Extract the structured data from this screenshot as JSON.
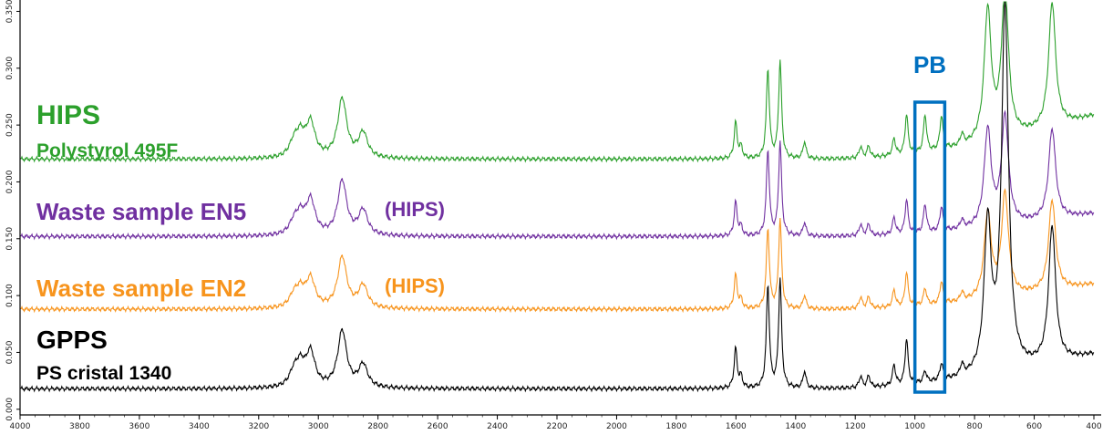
{
  "chart_data": {
    "type": "line",
    "title": "",
    "xlabel": "",
    "ylabel": "",
    "xlim": [
      4000,
      400
    ],
    "ylim": [
      -0.005,
      0.36
    ],
    "x_ticks": [
      "4000",
      "3800",
      "3600",
      "3400",
      "3200",
      "3000",
      "2800",
      "2600",
      "2400",
      "2200",
      "2000",
      "1800",
      "1600",
      "1400",
      "1200",
      "1000",
      "800",
      "600",
      "400"
    ],
    "y_ticks": [
      "0.000",
      "0.050",
      "0.100",
      "0.150",
      "0.200",
      "0.250",
      "0.300",
      "0.350"
    ],
    "series": [
      {
        "name": "HIPS",
        "sublabel": "Polystyrol 495F",
        "color": "#2ca02c",
        "baseline": 0.22,
        "tail_y": 0.258,
        "label_note": "",
        "peaks": [
          {
            "x": 3082,
            "h": 0.012
          },
          {
            "x": 3060,
            "h": 0.018
          },
          {
            "x": 3026,
            "h": 0.03
          },
          {
            "x": 2920,
            "h": 0.052
          },
          {
            "x": 2850,
            "h": 0.022
          },
          {
            "x": 1601,
            "h": 0.032
          },
          {
            "x": 1583,
            "h": 0.01
          },
          {
            "x": 1493,
            "h": 0.078
          },
          {
            "x": 1452,
            "h": 0.085
          },
          {
            "x": 1370,
            "h": 0.015
          },
          {
            "x": 1182,
            "h": 0.01
          },
          {
            "x": 1155,
            "h": 0.01
          },
          {
            "x": 1070,
            "h": 0.015
          },
          {
            "x": 1028,
            "h": 0.035
          },
          {
            "x": 966,
            "h": 0.033
          },
          {
            "x": 911,
            "h": 0.03
          },
          {
            "x": 842,
            "h": 0.01
          },
          {
            "x": 756,
            "h": 0.115
          },
          {
            "x": 698,
            "h": 0.13
          },
          {
            "x": 540,
            "h": 0.11
          }
        ]
      },
      {
        "name": "Waste sample EN5",
        "sublabel": "",
        "color": "#7030a0",
        "baseline": 0.152,
        "tail_y": 0.172,
        "label_note": "(HIPS)",
        "peaks": [
          {
            "x": 3082,
            "h": 0.01
          },
          {
            "x": 3060,
            "h": 0.016
          },
          {
            "x": 3026,
            "h": 0.03
          },
          {
            "x": 2920,
            "h": 0.048
          },
          {
            "x": 2850,
            "h": 0.022
          },
          {
            "x": 1601,
            "h": 0.03
          },
          {
            "x": 1583,
            "h": 0.008
          },
          {
            "x": 1493,
            "h": 0.075
          },
          {
            "x": 1452,
            "h": 0.082
          },
          {
            "x": 1370,
            "h": 0.012
          },
          {
            "x": 1182,
            "h": 0.01
          },
          {
            "x": 1155,
            "h": 0.01
          },
          {
            "x": 1070,
            "h": 0.015
          },
          {
            "x": 1028,
            "h": 0.03
          },
          {
            "x": 966,
            "h": 0.025
          },
          {
            "x": 911,
            "h": 0.022
          },
          {
            "x": 842,
            "h": 0.008
          },
          {
            "x": 756,
            "h": 0.085
          },
          {
            "x": 698,
            "h": 0.095
          },
          {
            "x": 540,
            "h": 0.08
          }
        ]
      },
      {
        "name": "Waste sample EN2",
        "sublabel": "",
        "color": "#f7941d",
        "baseline": 0.088,
        "tail_y": 0.11,
        "label_note": "(HIPS)",
        "peaks": [
          {
            "x": 3082,
            "h": 0.01
          },
          {
            "x": 3060,
            "h": 0.014
          },
          {
            "x": 3026,
            "h": 0.025
          },
          {
            "x": 2920,
            "h": 0.045
          },
          {
            "x": 2850,
            "h": 0.02
          },
          {
            "x": 1601,
            "h": 0.03
          },
          {
            "x": 1583,
            "h": 0.008
          },
          {
            "x": 1493,
            "h": 0.07
          },
          {
            "x": 1452,
            "h": 0.078
          },
          {
            "x": 1370,
            "h": 0.012
          },
          {
            "x": 1182,
            "h": 0.01
          },
          {
            "x": 1155,
            "h": 0.01
          },
          {
            "x": 1070,
            "h": 0.015
          },
          {
            "x": 1028,
            "h": 0.03
          },
          {
            "x": 966,
            "h": 0.015
          },
          {
            "x": 911,
            "h": 0.02
          },
          {
            "x": 842,
            "h": 0.008
          },
          {
            "x": 756,
            "h": 0.075
          },
          {
            "x": 698,
            "h": 0.09
          },
          {
            "x": 540,
            "h": 0.08
          }
        ]
      },
      {
        "name": "GPPS",
        "sublabel": "PS cristal 1340",
        "color": "#000000",
        "baseline": 0.018,
        "tail_y": 0.048,
        "label_note": "",
        "peaks": [
          {
            "x": 3082,
            "h": 0.012
          },
          {
            "x": 3060,
            "h": 0.018
          },
          {
            "x": 3026,
            "h": 0.03
          },
          {
            "x": 2920,
            "h": 0.05
          },
          {
            "x": 2850,
            "h": 0.02
          },
          {
            "x": 1601,
            "h": 0.035
          },
          {
            "x": 1583,
            "h": 0.01
          },
          {
            "x": 1493,
            "h": 0.09
          },
          {
            "x": 1452,
            "h": 0.095
          },
          {
            "x": 1370,
            "h": 0.015
          },
          {
            "x": 1182,
            "h": 0.01
          },
          {
            "x": 1155,
            "h": 0.01
          },
          {
            "x": 1070,
            "h": 0.018
          },
          {
            "x": 1028,
            "h": 0.04
          },
          {
            "x": 966,
            "h": 0.01
          },
          {
            "x": 911,
            "h": 0.015
          },
          {
            "x": 842,
            "h": 0.01
          },
          {
            "x": 756,
            "h": 0.13
          },
          {
            "x": 698,
            "h": 0.32
          },
          {
            "x": 540,
            "h": 0.12
          }
        ]
      }
    ],
    "annotations": [
      {
        "text": "PB",
        "color": "#0070c0",
        "type": "box",
        "x_range": [
          1000,
          900
        ]
      }
    ],
    "grid": false
  }
}
